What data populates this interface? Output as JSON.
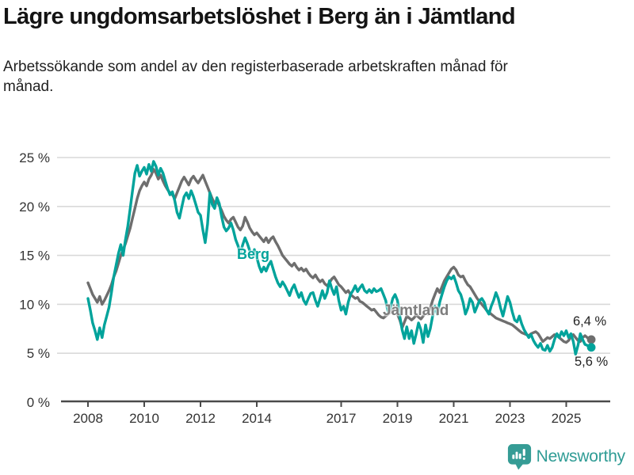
{
  "header": {
    "title": "Lägre ungdomsarbetslöshet i Berg än i Jämtland",
    "subtitle": "Arbetssökande som andel av den registerbaserade arbetskraften månad för månad."
  },
  "chart_data": {
    "type": "line",
    "title": "Lägre ungdomsarbetslöshet i Berg än i Jämtland",
    "subtitle": "Arbetssökande som andel av den registerbaserade arbetskraften månad för månad.",
    "unit": "%",
    "frequency": "monthly",
    "x_start_year": 2008,
    "ylim": [
      0,
      25
    ],
    "yticks": [
      0,
      5,
      10,
      15,
      20,
      25
    ],
    "ytick_labels": [
      "0 %",
      "5 %",
      "10 %",
      "15 %",
      "20 %",
      "25 %"
    ],
    "xticks": [
      2008,
      2010,
      2012,
      2014,
      2017,
      2019,
      2021,
      2023,
      2025
    ],
    "xtick_labels": [
      "2008",
      "2010",
      "2012",
      "2014",
      "2017",
      "2019",
      "2021",
      "2023",
      "2025"
    ],
    "grid": "horizontal",
    "legend_position": "inline-labels",
    "grid_color": "#d9d9d9",
    "axis_color": "#4a4a4a",
    "tick_label_color": "#333333",
    "series": [
      {
        "name": "Jämtland",
        "color": "#6e6e6e",
        "label_color": "#7d7d7d",
        "end_value": 6.4,
        "end_value_label": "6,4 %",
        "values": [
          12.2,
          11.6,
          11.0,
          10.6,
          10.2,
          10.8,
          10.0,
          10.4,
          10.9,
          11.4,
          12.0,
          12.8,
          13.4,
          14.2,
          15.0,
          15.6,
          16.2,
          17.0,
          17.8,
          18.8,
          19.8,
          20.8,
          21.6,
          22.1,
          22.5,
          22.1,
          22.8,
          23.2,
          23.8,
          23.4,
          22.8,
          23.2,
          22.6,
          22.1,
          21.7,
          21.4,
          21.2,
          20.8,
          21.4,
          22.0,
          22.6,
          23.0,
          22.6,
          22.2,
          22.8,
          23.1,
          22.7,
          22.4,
          22.8,
          23.2,
          22.6,
          22.0,
          21.4,
          20.8,
          20.3,
          20.6,
          20.1,
          19.6,
          19.0,
          18.6,
          18.3,
          18.7,
          18.9,
          18.4,
          17.9,
          17.6,
          18.0,
          18.9,
          18.4,
          17.8,
          17.4,
          17.1,
          17.3,
          17.0,
          16.7,
          16.4,
          16.8,
          16.3,
          16.7,
          16.9,
          16.4,
          16.0,
          15.5,
          15.0,
          14.7,
          14.4,
          14.1,
          13.9,
          14.2,
          13.8,
          13.5,
          13.7,
          13.4,
          13.6,
          13.2,
          12.9,
          12.7,
          13.0,
          12.6,
          12.3,
          12.5,
          12.1,
          11.9,
          12.2,
          12.6,
          12.8,
          12.4,
          12.0,
          11.8,
          11.5,
          11.2,
          11.4,
          11.0,
          10.8,
          10.6,
          10.7,
          10.3,
          10.2,
          10.0,
          9.8,
          9.6,
          9.4,
          9.5,
          9.2,
          8.9,
          8.7,
          8.6,
          8.8,
          9.0,
          9.2,
          9.4,
          9.5,
          9.0,
          8.4,
          7.6,
          8.2,
          8.8,
          8.6,
          8.4,
          8.6,
          8.9,
          8.7,
          8.5,
          8.8,
          9.2,
          9.0,
          9.6,
          10.4,
          11.0,
          11.6,
          11.2,
          11.8,
          12.4,
          12.8,
          13.2,
          13.6,
          13.8,
          13.5,
          13.0,
          12.8,
          12.9,
          12.4,
          12.0,
          11.8,
          11.4,
          11.0,
          10.6,
          10.3,
          10.0,
          9.7,
          9.4,
          9.2,
          9.0,
          8.8,
          8.6,
          8.5,
          8.4,
          8.3,
          8.2,
          8.1,
          8.0,
          7.9,
          7.7,
          7.5,
          7.3,
          7.1,
          7.0,
          6.9,
          6.8,
          7.0,
          7.1,
          7.2,
          7.0,
          6.6,
          6.2,
          6.4,
          6.6,
          6.5,
          6.7,
          6.9,
          6.8,
          6.6,
          6.4,
          6.2,
          6.1,
          6.3,
          6.7,
          6.9,
          6.6,
          6.3,
          6.2,
          6.6,
          6.8,
          6.6,
          6.4
        ]
      },
      {
        "name": "Berg",
        "color": "#00a39b",
        "label_color": "#00a39b",
        "end_value": 5.6,
        "end_value_label": "5,6 %",
        "values": [
          10.6,
          9.4,
          8.1,
          7.3,
          6.4,
          7.6,
          6.6,
          7.9,
          8.8,
          9.7,
          11.2,
          12.8,
          14.0,
          15.2,
          16.1,
          15.0,
          16.6,
          18.0,
          19.8,
          21.6,
          23.4,
          24.2,
          23.1,
          23.6,
          24.0,
          23.3,
          24.3,
          23.6,
          24.6,
          24.1,
          23.2,
          23.9,
          23.4,
          22.6,
          21.8,
          21.2,
          21.5,
          20.6,
          19.4,
          18.8,
          19.9,
          21.0,
          21.4,
          20.8,
          21.6,
          21.0,
          20.2,
          19.4,
          19.1,
          17.6,
          16.3,
          18.2,
          21.4,
          20.2,
          19.8,
          20.9,
          20.3,
          19.0,
          17.9,
          17.5,
          17.8,
          18.3,
          17.6,
          16.6,
          16.0,
          15.2,
          16.1,
          16.8,
          16.2,
          15.5,
          15.0,
          15.6,
          14.8,
          13.9,
          13.3,
          13.8,
          13.4,
          14.0,
          14.4,
          13.6,
          12.8,
          12.2,
          11.8,
          12.3,
          11.9,
          11.4,
          10.9,
          11.6,
          12.0,
          11.3,
          10.7,
          11.2,
          10.4,
          10.0,
          10.6,
          11.1,
          11.2,
          10.4,
          9.8,
          10.6,
          11.4,
          10.6,
          11.2,
          12.4,
          11.6,
          11.0,
          11.8,
          10.4,
          9.4,
          9.8,
          9.0,
          10.2,
          11.0,
          11.4,
          11.9,
          11.3,
          11.7,
          12.0,
          11.4,
          11.2,
          11.5,
          11.2,
          11.6,
          11.3,
          11.4,
          11.6,
          11.0,
          10.4,
          9.2,
          9.6,
          10.6,
          11.0,
          10.4,
          8.8,
          7.4,
          6.5,
          7.7,
          6.5,
          7.3,
          6.0,
          7.0,
          8.1,
          7.4,
          6.1,
          7.9,
          6.7,
          7.5,
          8.8,
          9.8,
          9.0,
          10.2,
          11.0,
          11.8,
          12.4,
          12.8,
          12.6,
          12.9,
          12.2,
          11.4,
          11.0,
          10.2,
          9.0,
          9.6,
          10.6,
          10.2,
          9.2,
          9.8,
          10.4,
          10.6,
          10.2,
          9.4,
          9.0,
          9.8,
          10.4,
          11.2,
          10.6,
          9.6,
          8.8,
          9.8,
          10.8,
          10.2,
          9.2,
          8.4,
          8.2,
          8.8,
          8.0,
          7.4,
          7.0,
          6.6,
          6.9,
          6.3,
          5.9,
          5.6,
          6.0,
          5.4,
          5.3,
          5.8,
          5.2,
          5.6,
          6.4,
          7.0,
          6.6,
          7.2,
          6.8,
          7.3,
          6.6,
          7.0,
          6.2,
          4.9,
          5.8,
          7.0,
          6.4,
          5.9,
          5.8,
          5.6
        ]
      }
    ]
  },
  "annotations": {
    "berg_label": "Berg",
    "jamtland_label": "Jämtland",
    "jamtland_end_value": "6,4 %",
    "berg_end_value": "5,6 %"
  },
  "footer": {
    "brand": "Newsworthy",
    "brand_color": "#2f9c95",
    "logo_icon": "bar-chart-bubble-icon"
  }
}
